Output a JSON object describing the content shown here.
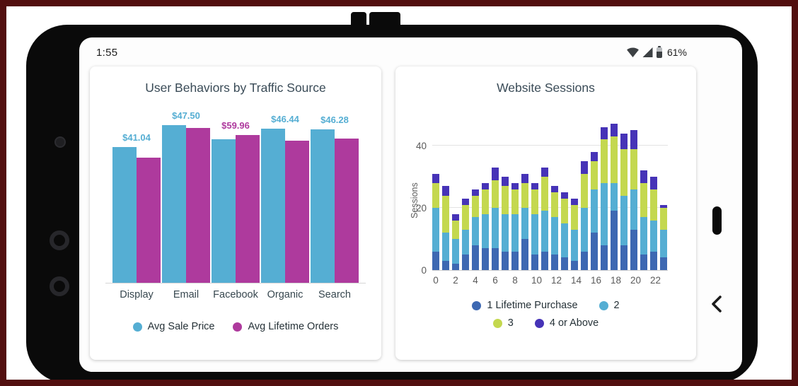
{
  "status_bar": {
    "time": "1:55",
    "battery_percent": "61%",
    "icons": [
      "wifi-icon",
      "cellular-signal-icon",
      "battery-icon"
    ]
  },
  "nav": {
    "back_button": "back-chevron",
    "home_pill": "home-pill"
  },
  "colors": {
    "avg_sale_price": "#55aed3",
    "avg_lifetime_orders": "#ae3a9d",
    "seg_1_lifetime_purchase": "#3d68b2",
    "seg_2": "#55aed3",
    "seg_3": "#c4d84f",
    "seg_4_or_above": "#4633b7"
  },
  "chart_data": [
    {
      "type": "bar",
      "title": "User Behaviors by Traffic Source",
      "categories": [
        "Display",
        "Email",
        "Facebook",
        "Organic",
        "Search"
      ],
      "series": [
        {
          "name": "Avg Sale Price",
          "color": "#55aed3",
          "axis_max": 49.3,
          "values": [
            41.04,
            47.5,
            43.3,
            46.44,
            46.28
          ]
        },
        {
          "name": "Avg Lifetime Orders",
          "color": "#ae3a9d",
          "axis_max": 66.2,
          "values": [
            50.6,
            62.9,
            59.96,
            57.6,
            58.5
          ]
        }
      ],
      "data_labels": [
        {
          "category": "Display",
          "text": "$41.04",
          "color": "#55aed3"
        },
        {
          "category": "Email",
          "text": "$47.50",
          "color": "#55aed3"
        },
        {
          "category": "Facebook",
          "text": "$59.96",
          "color": "#ae3a9d"
        },
        {
          "category": "Organic",
          "text": "$46.44",
          "color": "#55aed3"
        },
        {
          "category": "Search",
          "text": "$46.28",
          "color": "#55aed3"
        }
      ],
      "legend_position": "bottom",
      "grid": false
    },
    {
      "type": "stacked-bar",
      "title": "Website Sessions",
      "ylabel": "Sessions",
      "yticks": [
        0,
        20,
        40
      ],
      "ylim": [
        0,
        48
      ],
      "xticks": [
        "0",
        "2",
        "4",
        "6",
        "8",
        "10",
        "12",
        "14",
        "16",
        "18",
        "20",
        "22"
      ],
      "x": [
        0,
        1,
        2,
        3,
        4,
        5,
        6,
        7,
        8,
        9,
        10,
        11,
        12,
        13,
        14,
        15,
        16,
        17,
        18,
        19,
        20,
        21,
        22,
        23
      ],
      "series": [
        {
          "name": "1 Lifetime Purchase",
          "color": "#3d68b2",
          "values": [
            6,
            3,
            2,
            5,
            8,
            7,
            7,
            6,
            6,
            10,
            5,
            6,
            5,
            4,
            3,
            6,
            12,
            8,
            19,
            8,
            13,
            5,
            6,
            4
          ]
        },
        {
          "name": "2",
          "color": "#55aed3",
          "values": [
            14,
            9,
            8,
            8,
            9,
            11,
            13,
            12,
            12,
            10,
            13,
            13,
            12,
            11,
            10,
            14,
            14,
            20,
            9,
            16,
            13,
            12,
            10,
            9
          ]
        },
        {
          "name": "3",
          "color": "#c4d84f",
          "values": [
            8,
            12,
            6,
            8,
            7,
            8,
            9,
            9,
            8,
            8,
            8,
            11,
            8,
            8,
            8,
            11,
            9,
            14,
            15,
            15,
            13,
            11,
            10,
            7
          ]
        },
        {
          "name": "4 or Above",
          "color": "#4633b7",
          "values": [
            3,
            3,
            2,
            2,
            2,
            2,
            4,
            3,
            2,
            3,
            2,
            3,
            2,
            2,
            2,
            4,
            3,
            4,
            4,
            5,
            6,
            4,
            4,
            1
          ]
        }
      ],
      "legend_position": "bottom",
      "grid": true
    }
  ]
}
